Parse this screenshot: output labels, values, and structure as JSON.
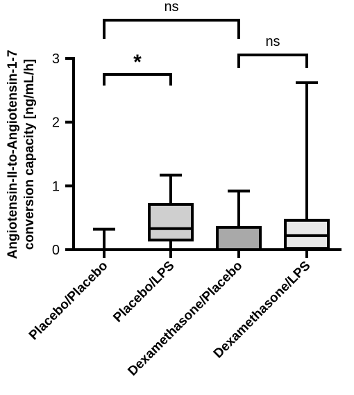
{
  "chart_data": {
    "type": "boxplot",
    "ylabel_line1": "Angiotensin-II-to-Angiotensin-1-7",
    "ylabel_line2": "conversion capacity [ng/mL/h]",
    "ylim": [
      0,
      3
    ],
    "yticks": [
      "0",
      "1",
      "2",
      "3"
    ],
    "categories": [
      "Placebo/Placebo",
      "Placebo/LPS",
      "Dexamethasone/Placebo",
      "Dexamethasone/LPS"
    ],
    "boxes": [
      {
        "min": 0,
        "q1": 0,
        "median": 0,
        "q3": 0,
        "max": 0.32,
        "color": "#ffffff"
      },
      {
        "min": 0,
        "q1": 0.15,
        "median": 0.33,
        "q3": 0.71,
        "max": 1.17,
        "color": "#cfcfcf"
      },
      {
        "min": 0,
        "q1": 0,
        "median": 0,
        "q3": 0.35,
        "max": 0.92,
        "color": "#a9a9a9"
      },
      {
        "min": 0,
        "q1": 0.02,
        "median": 0.22,
        "q3": 0.46,
        "max": 2.62,
        "color": "#e8e8e8"
      }
    ],
    "significance": [
      {
        "from": "Placebo/Placebo",
        "to": "Placebo/LPS",
        "label": "*"
      },
      {
        "from": "Placebo/Placebo",
        "to": "Dexamethasone/Placebo",
        "label": "ns"
      },
      {
        "from": "Dexamethasone/Placebo",
        "to": "Dexamethasone/LPS",
        "label": "ns"
      }
    ]
  }
}
